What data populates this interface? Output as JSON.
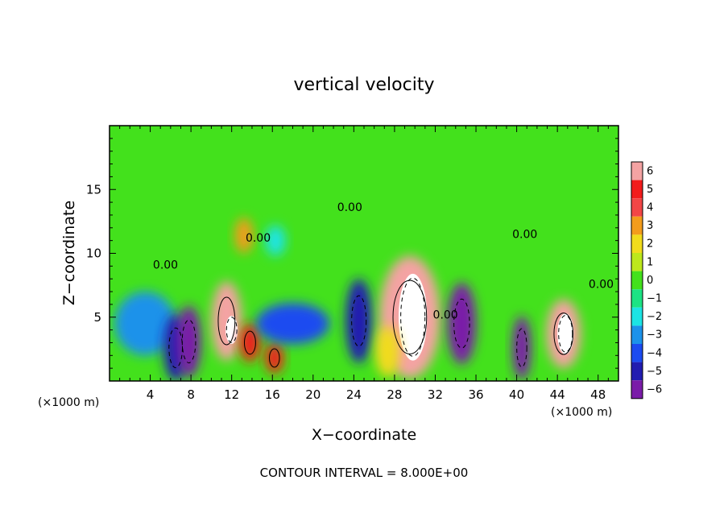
{
  "chart_data": {
    "type": "heatmap",
    "title": "vertical velocity",
    "xlabel": "X−coordinate",
    "ylabel": "Z−coordinate",
    "x_unit_left": "(×1000 m)",
    "x_unit_right": "(×1000 m)",
    "xlim": [
      0,
      50
    ],
    "ylim": [
      0,
      20
    ],
    "x_ticks": [
      4,
      8,
      12,
      16,
      20,
      24,
      28,
      32,
      36,
      40,
      44,
      48
    ],
    "x_tick_labels": [
      "4",
      "8",
      "12",
      "16",
      "20",
      "24",
      "28",
      "32",
      "36",
      "40",
      "44",
      "48"
    ],
    "y_ticks": [
      5,
      10,
      15
    ],
    "y_tick_labels": [
      "5",
      "10",
      "15"
    ],
    "colorbar": {
      "levels": [
        6,
        5,
        4,
        3,
        2,
        1,
        0,
        -1,
        -2,
        -3,
        -4,
        -5,
        -6
      ],
      "labels": [
        "6",
        "5",
        "4",
        "3",
        "2",
        "1",
        "0",
        "−1",
        "−2",
        "−3",
        "−4",
        "−5",
        "−6"
      ],
      "colors": [
        "#f4a3a3",
        "#f21c1c",
        "#f24646",
        "#f39c1c",
        "#f1dc1c",
        "#bde81c",
        "#43e11c",
        "#1ce384",
        "#1ce4e4",
        "#1c92ea",
        "#1c4bf0",
        "#221cb0",
        "#7a1ca8"
      ]
    },
    "contour_labels": [
      {
        "text": "0.00",
        "x": 5.5,
        "y": 8.8
      },
      {
        "text": "0.00",
        "x": 23.6,
        "y": 13.3
      },
      {
        "text": "0.00",
        "x": 14.6,
        "y": 10.9
      },
      {
        "text": "0.00",
        "x": 40.8,
        "y": 11.2
      },
      {
        "text": "0.00",
        "x": 48.3,
        "y": 7.3
      },
      {
        "text": "0.00",
        "x": 33.0,
        "y": 4.9
      }
    ],
    "cells": [
      {
        "x": 3.5,
        "y": 4.5,
        "rx": 3.0,
        "ry": 2.5,
        "value": -3
      },
      {
        "x": 6.5,
        "y": 2.6,
        "rx": 1.2,
        "ry": 2.6,
        "value": -5
      },
      {
        "x": 7.8,
        "y": 3.1,
        "rx": 1.2,
        "ry": 2.8,
        "value": -6
      },
      {
        "x": 11.5,
        "y": 4.7,
        "rx": 1.5,
        "ry": 3.1,
        "value": 6
      },
      {
        "x": 12.0,
        "y": 4.0,
        "rx": 0.6,
        "ry": 1.1,
        "value": 9
      },
      {
        "x": 13.8,
        "y": 3.0,
        "rx": 1.0,
        "ry": 1.5,
        "value": 5
      },
      {
        "x": 16.2,
        "y": 1.8,
        "rx": 0.9,
        "ry": 1.2,
        "value": 5
      },
      {
        "x": 18.0,
        "y": 4.5,
        "rx": 3.6,
        "ry": 1.6,
        "value": -4
      },
      {
        "x": 24.5,
        "y": 4.7,
        "rx": 1.3,
        "ry": 3.3,
        "value": -5
      },
      {
        "x": 29.5,
        "y": 5.0,
        "rx": 3.0,
        "ry": 4.8,
        "value": 6
      },
      {
        "x": 29.8,
        "y": 5.0,
        "rx": 1.4,
        "ry": 3.4,
        "value": 9
      },
      {
        "x": 34.6,
        "y": 4.5,
        "rx": 1.4,
        "ry": 3.2,
        "value": -6
      },
      {
        "x": 40.5,
        "y": 2.6,
        "rx": 0.9,
        "ry": 2.5,
        "value": -6
      },
      {
        "x": 44.6,
        "y": 3.7,
        "rx": 1.7,
        "ry": 2.7,
        "value": 6
      },
      {
        "x": 44.8,
        "y": 3.7,
        "rx": 0.8,
        "ry": 1.6,
        "value": 9
      },
      {
        "x": 13.2,
        "y": 11.4,
        "rx": 0.9,
        "ry": 1.4,
        "value": 3
      },
      {
        "x": 16.3,
        "y": 11.0,
        "rx": 1.0,
        "ry": 1.2,
        "value": -2
      },
      {
        "x": 27.3,
        "y": 2.3,
        "rx": 1.2,
        "ry": 2.0,
        "value": 2
      }
    ]
  },
  "footer": {
    "contour_interval": "CONTOUR INTERVAL = 8.000E+00"
  }
}
